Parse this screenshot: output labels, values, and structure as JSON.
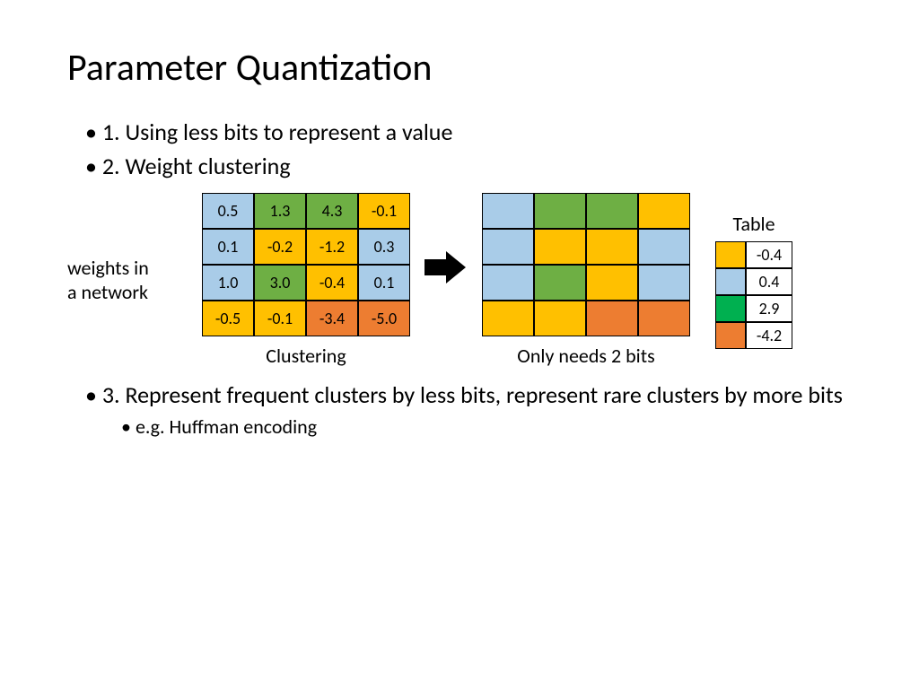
{
  "title": "Parameter Quantization",
  "bullets": {
    "b1": "1. Using less bits to represent a value",
    "b2": "2. Weight clustering",
    "b3": "3. Represent frequent clusters by less bits, represent rare clusters by more bits",
    "b3sub": "e.g. Huffman encoding"
  },
  "side_label_line1": "weights in",
  "side_label_line2": "a network",
  "left_caption": "Clustering",
  "right_caption": "Only needs 2 bits",
  "table_title": "Table",
  "colors": {
    "blue": "#a9cce8",
    "green": "#6eaf44",
    "green2": "#00b050",
    "yellow": "#ffc000",
    "orange": "#ed7d31",
    "white": "#ffffff"
  },
  "left_grid": {
    "cells": [
      {
        "v": "0.5",
        "c": "blue"
      },
      {
        "v": "1.3",
        "c": "green"
      },
      {
        "v": "4.3",
        "c": "green"
      },
      {
        "v": "-0.1",
        "c": "yellow"
      },
      {
        "v": "0.1",
        "c": "blue"
      },
      {
        "v": "-0.2",
        "c": "yellow"
      },
      {
        "v": "-1.2",
        "c": "yellow"
      },
      {
        "v": "0.3",
        "c": "blue"
      },
      {
        "v": "1.0",
        "c": "blue"
      },
      {
        "v": "3.0",
        "c": "green"
      },
      {
        "v": "-0.4",
        "c": "yellow"
      },
      {
        "v": "0.1",
        "c": "blue"
      },
      {
        "v": "-0.5",
        "c": "yellow"
      },
      {
        "v": "-0.1",
        "c": "yellow"
      },
      {
        "v": "-3.4",
        "c": "orange"
      },
      {
        "v": "-5.0",
        "c": "orange"
      }
    ]
  },
  "right_grid": {
    "cells": [
      {
        "c": "blue"
      },
      {
        "c": "green"
      },
      {
        "c": "green"
      },
      {
        "c": "yellow"
      },
      {
        "c": "blue"
      },
      {
        "c": "yellow"
      },
      {
        "c": "yellow"
      },
      {
        "c": "blue"
      },
      {
        "c": "blue"
      },
      {
        "c": "green"
      },
      {
        "c": "yellow"
      },
      {
        "c": "blue"
      },
      {
        "c": "yellow"
      },
      {
        "c": "yellow"
      },
      {
        "c": "orange"
      },
      {
        "c": "orange"
      }
    ]
  },
  "lookup_table": [
    {
      "c": "yellow",
      "v": "-0.4"
    },
    {
      "c": "blue",
      "v": "0.4"
    },
    {
      "c": "green2",
      "v": "2.9"
    },
    {
      "c": "orange",
      "v": "-4.2"
    }
  ]
}
